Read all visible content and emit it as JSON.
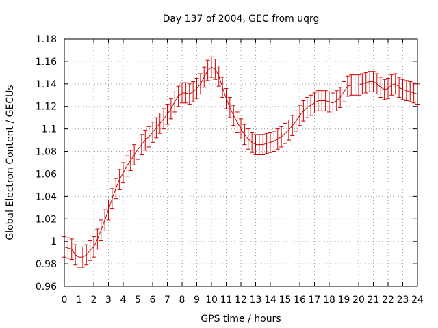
{
  "chart_data": {
    "type": "line",
    "title": "Day 137 of 2004, GEC from uqrg",
    "xlabel": "GPS time / hours",
    "ylabel": "Global Electron Content / GECUs",
    "xlim": [
      0,
      24
    ],
    "ylim": [
      0.96,
      1.18
    ],
    "xticks": [
      "0",
      "1",
      "2",
      "3",
      "4",
      "5",
      "6",
      "7",
      "8",
      "9",
      "10",
      "11",
      "12",
      "13",
      "14",
      "15",
      "16",
      "17",
      "18",
      "19",
      "20",
      "21",
      "22",
      "23",
      "24"
    ],
    "yticks": [
      "0.96",
      "0.98",
      "1",
      "1.02",
      "1.04",
      "1.06",
      "1.08",
      "1.1",
      "1.12",
      "1.14",
      "1.16",
      "1.18"
    ],
    "grid": true,
    "error_bar_half_width": 0.009,
    "series": [
      {
        "color": "#cc0000",
        "x": [
          0,
          0.25,
          0.5,
          0.75,
          1,
          1.25,
          1.5,
          1.75,
          2,
          2.25,
          2.5,
          2.75,
          3,
          3.25,
          3.5,
          3.75,
          4,
          4.25,
          4.5,
          4.75,
          5,
          5.25,
          5.5,
          5.75,
          6,
          6.25,
          6.5,
          6.75,
          7,
          7.25,
          7.5,
          7.75,
          8,
          8.25,
          8.5,
          8.75,
          9,
          9.25,
          9.5,
          9.75,
          10,
          10.25,
          10.5,
          10.75,
          11,
          11.25,
          11.5,
          11.75,
          12,
          12.25,
          12.5,
          12.75,
          13,
          13.25,
          13.5,
          13.75,
          14,
          14.25,
          14.5,
          14.75,
          15,
          15.25,
          15.5,
          15.75,
          16,
          16.25,
          16.5,
          16.75,
          17,
          17.25,
          17.5,
          17.75,
          18,
          18.25,
          18.5,
          18.75,
          19,
          19.25,
          19.5,
          19.75,
          20,
          20.25,
          20.5,
          20.75,
          21,
          21.25,
          21.5,
          21.75,
          22,
          22.25,
          22.5,
          22.75,
          23,
          23.25,
          23.5,
          23.75,
          24
        ],
        "y": [
          0.995,
          0.994,
          0.993,
          0.988,
          0.986,
          0.986,
          0.988,
          0.992,
          0.995,
          1.002,
          1.01,
          1.019,
          1.028,
          1.038,
          1.047,
          1.055,
          1.061,
          1.067,
          1.072,
          1.077,
          1.082,
          1.086,
          1.09,
          1.093,
          1.097,
          1.101,
          1.105,
          1.109,
          1.113,
          1.118,
          1.124,
          1.129,
          1.132,
          1.132,
          1.131,
          1.133,
          1.136,
          1.14,
          1.146,
          1.152,
          1.155,
          1.153,
          1.147,
          1.137,
          1.127,
          1.119,
          1.112,
          1.106,
          1.1,
          1.095,
          1.091,
          1.088,
          1.086,
          1.086,
          1.086,
          1.087,
          1.088,
          1.089,
          1.091,
          1.093,
          1.096,
          1.099,
          1.103,
          1.107,
          1.112,
          1.116,
          1.119,
          1.121,
          1.123,
          1.125,
          1.125,
          1.125,
          1.124,
          1.123,
          1.125,
          1.128,
          1.133,
          1.138,
          1.139,
          1.139,
          1.139,
          1.14,
          1.141,
          1.142,
          1.142,
          1.14,
          1.137,
          1.135,
          1.136,
          1.139,
          1.14,
          1.137,
          1.135,
          1.134,
          1.133,
          1.132,
          1.131
        ]
      }
    ]
  }
}
